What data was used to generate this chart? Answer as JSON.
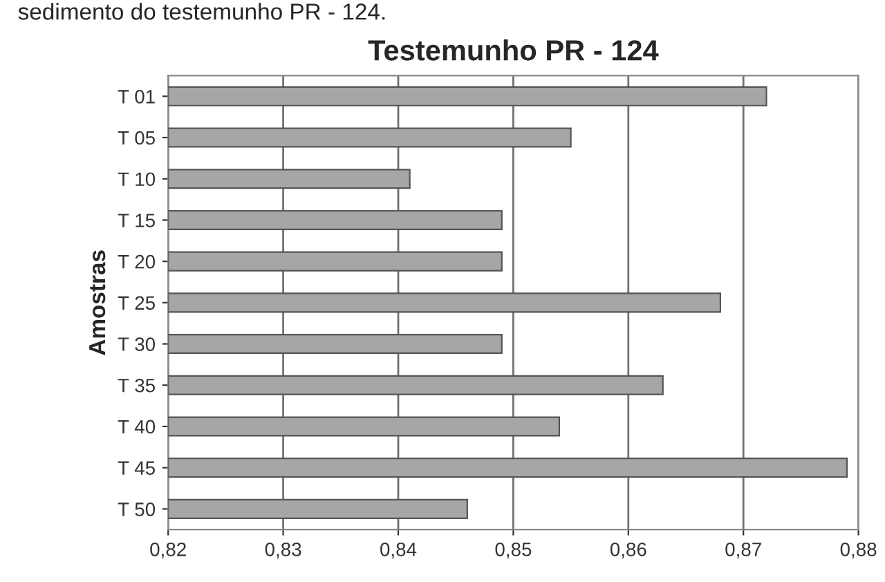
{
  "chart_data": {
    "type": "bar",
    "orientation": "horizontal",
    "title": "Testemunho PR - 124",
    "ylabel": "Amostras",
    "categories": [
      "T 01",
      "T 05",
      "T 10",
      "T 15",
      "T 20",
      "T 25",
      "T 30",
      "T 35",
      "T 40",
      "T 45",
      "T 50"
    ],
    "values": [
      0.872,
      0.855,
      0.841,
      0.849,
      0.849,
      0.868,
      0.849,
      0.863,
      0.854,
      0.879,
      0.846
    ],
    "color": "#a6a6a6",
    "xlim": [
      0.82,
      0.88
    ],
    "xticks": [
      {
        "value": 0.82,
        "label": "0,82"
      },
      {
        "value": 0.83,
        "label": "0,83"
      },
      {
        "value": 0.84,
        "label": "0,84"
      },
      {
        "value": 0.85,
        "label": "0,85"
      },
      {
        "value": 0.86,
        "label": "0,86"
      },
      {
        "value": 0.87,
        "label": "0,87"
      },
      {
        "value": 0.88,
        "label": "0,88"
      }
    ],
    "grid": "x",
    "annotations": [
      "sedimento do testemunho PR - 124."
    ]
  }
}
